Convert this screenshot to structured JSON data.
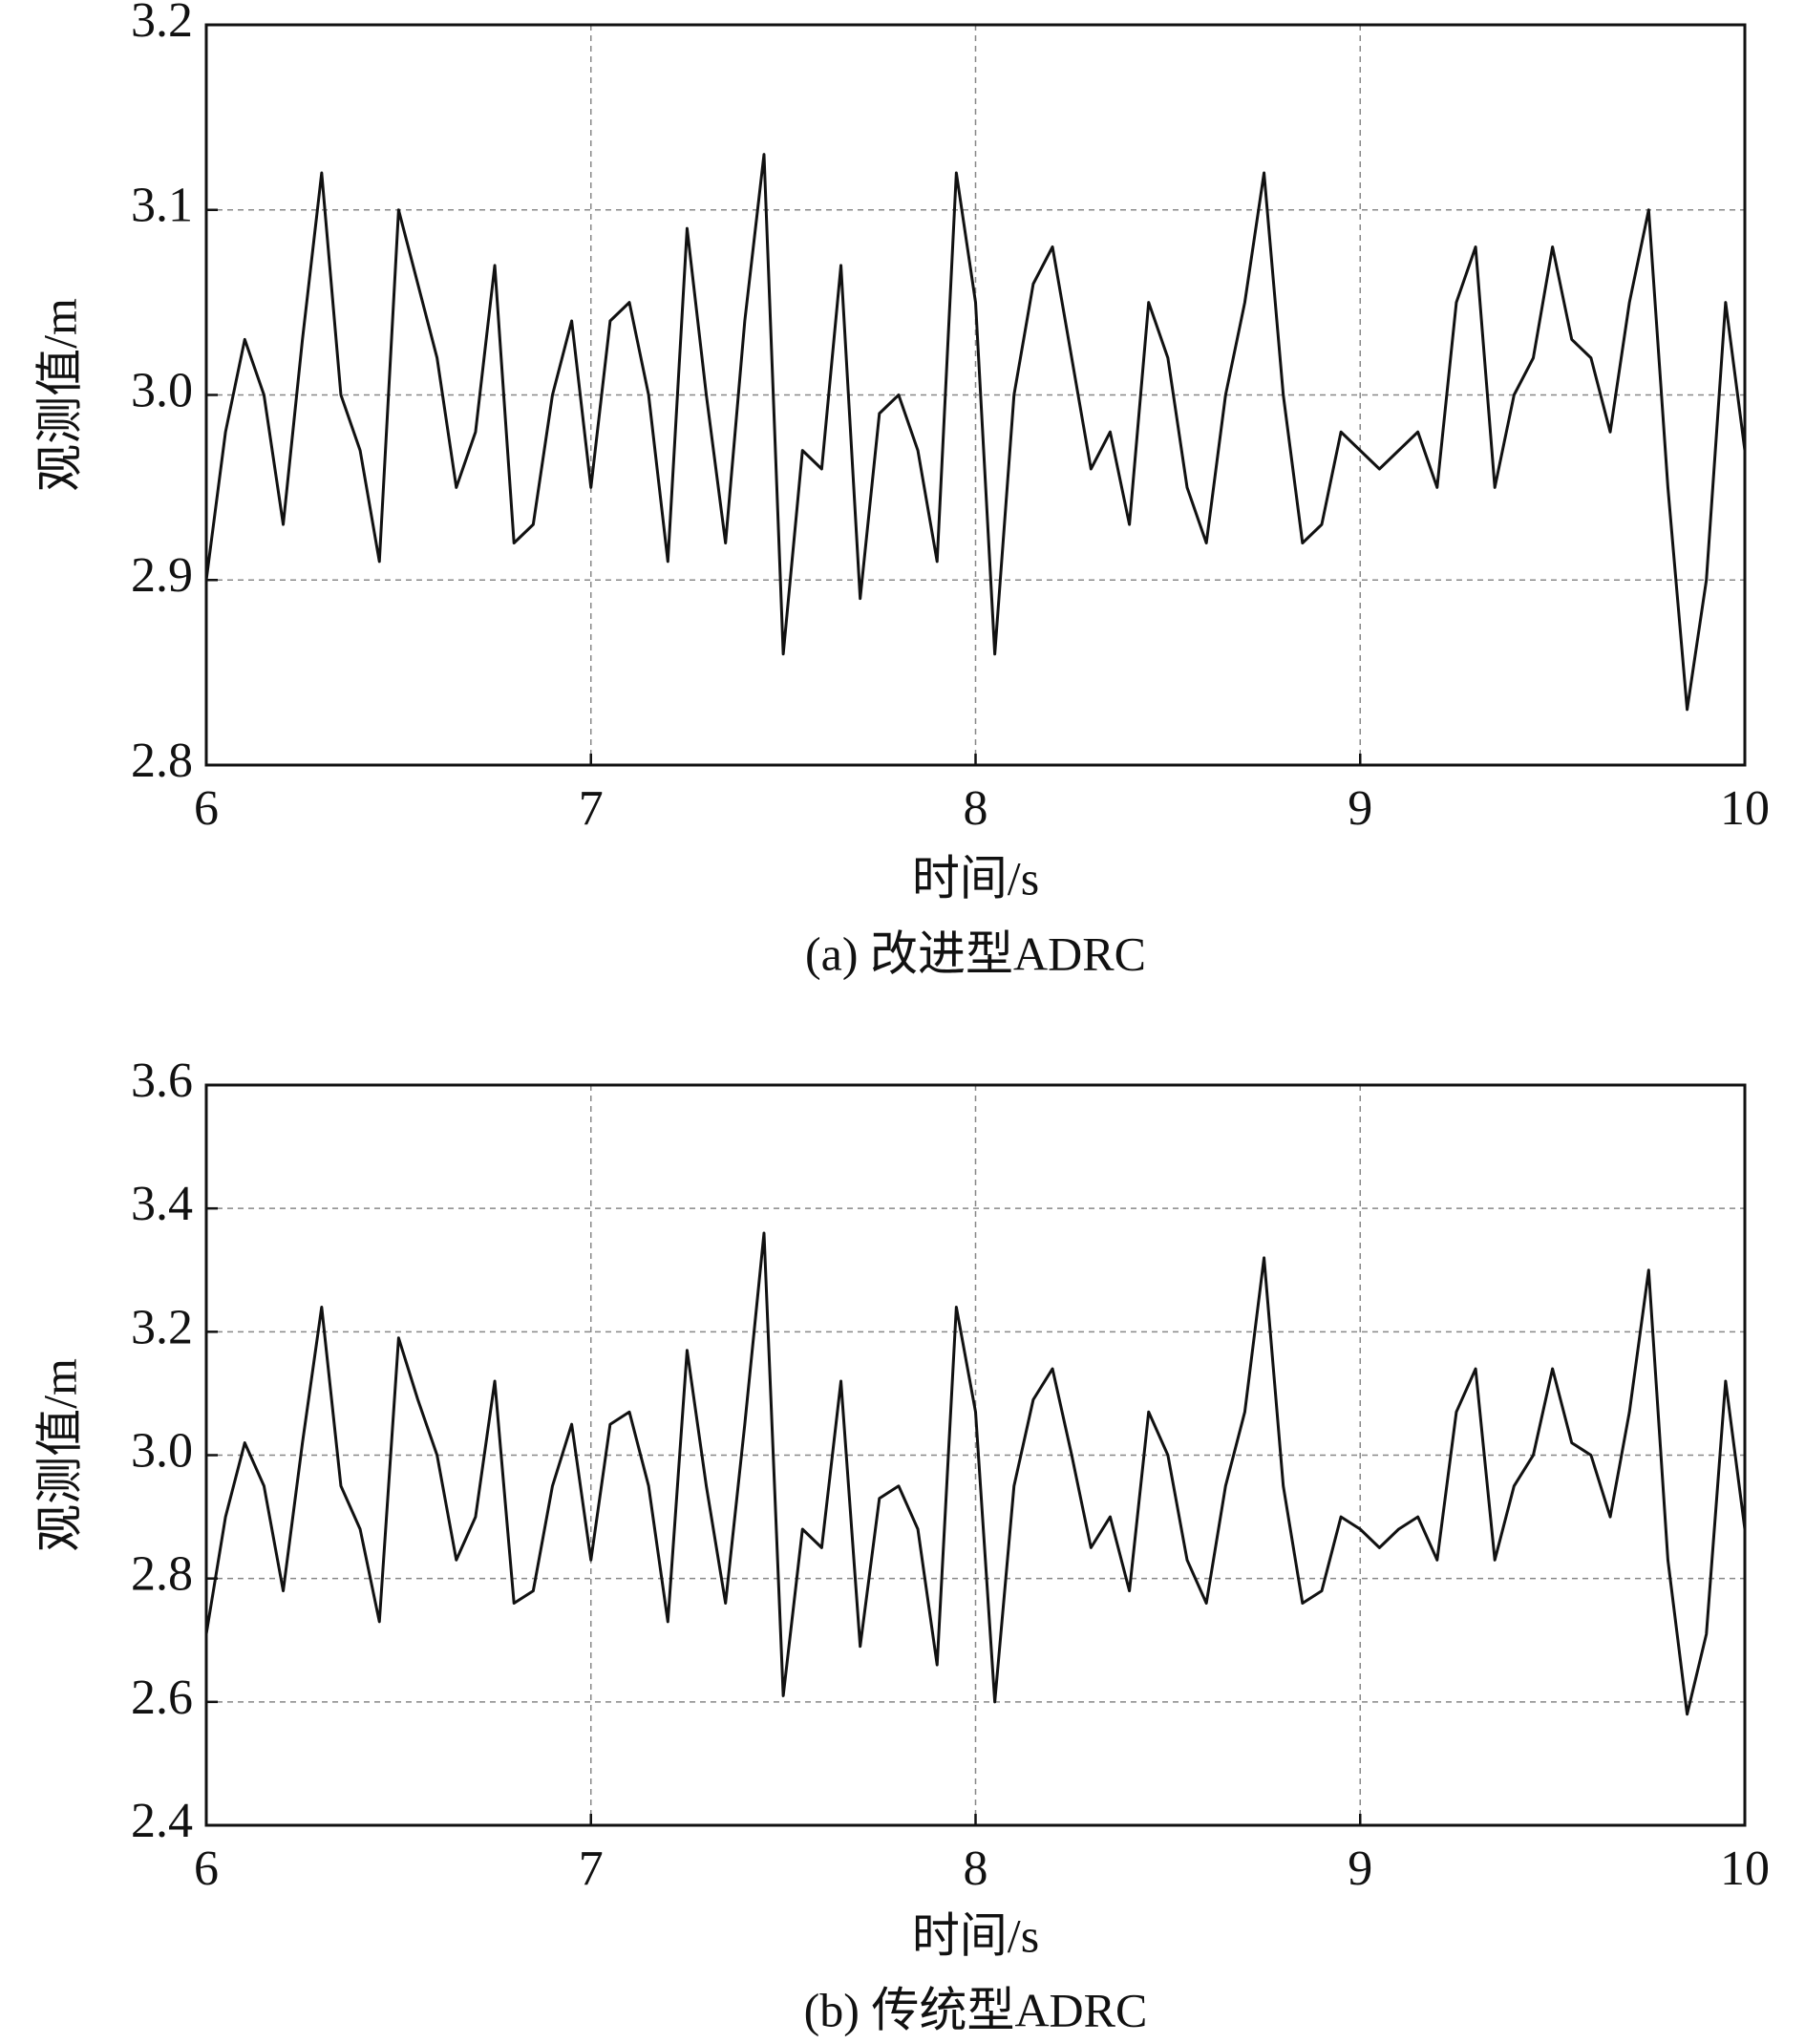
{
  "chart_data": [
    {
      "type": "line",
      "caption": "(a) 改进型ADRC",
      "xlabel": "时间/s",
      "ylabel": "观测值/m",
      "xlim": [
        6,
        10
      ],
      "xticks": [
        6,
        7,
        8,
        9,
        10
      ],
      "ylim": [
        2.8,
        3.2
      ],
      "yticks": [
        2.8,
        2.9,
        {
          "value": 3,
          "label": "3.0"
        },
        3.1,
        3.2
      ],
      "grid": true,
      "x": [
        6,
        6.05,
        6.1,
        6.15,
        6.2,
        6.25,
        6.3,
        6.35,
        6.4,
        6.45,
        6.5,
        6.55,
        6.6,
        6.65,
        6.7,
        6.75,
        6.8,
        6.85,
        6.9,
        6.95,
        7,
        7.05,
        7.1,
        7.15,
        7.2,
        7.25,
        7.3,
        7.35,
        7.4,
        7.45,
        7.5,
        7.55,
        7.6,
        7.65,
        7.7,
        7.75,
        7.8,
        7.85,
        7.9,
        7.95,
        8,
        8.05,
        8.1,
        8.15,
        8.2,
        8.25,
        8.3,
        8.35,
        8.4,
        8.45,
        8.5,
        8.55,
        8.6,
        8.65,
        8.7,
        8.75,
        8.8,
        8.85,
        8.9,
        8.95,
        9,
        9.05,
        9.1,
        9.15,
        9.2,
        9.25,
        9.3,
        9.35,
        9.4,
        9.45,
        9.5,
        9.55,
        9.6,
        9.65,
        9.7,
        9.75,
        9.8,
        9.85,
        9.9,
        9.95,
        10
      ],
      "series": [
        {
          "color": "#111111",
          "values": [
            2.9,
            2.98,
            3.03,
            3.0,
            2.93,
            3.03,
            3.12,
            3.0,
            2.97,
            2.91,
            3.1,
            3.06,
            3.02,
            2.95,
            2.98,
            3.07,
            2.92,
            2.93,
            3.0,
            3.04,
            2.95,
            3.04,
            3.05,
            3.0,
            2.91,
            3.09,
            3.0,
            2.92,
            3.04,
            3.13,
            2.86,
            2.97,
            2.96,
            3.07,
            2.89,
            2.99,
            3.0,
            2.97,
            2.91,
            3.12,
            3.05,
            2.86,
            3.0,
            3.06,
            3.08,
            3.02,
            2.96,
            2.98,
            2.93,
            3.05,
            3.02,
            2.95,
            2.92,
            3.0,
            3.05,
            3.12,
            3.0,
            2.92,
            2.93,
            2.98,
            2.97,
            2.96,
            2.97,
            2.98,
            2.95,
            3.05,
            3.08,
            2.95,
            3.0,
            3.02,
            3.08,
            3.03,
            3.02,
            2.98,
            3.05,
            3.1,
            2.95,
            2.83,
            2.9,
            3.05,
            2.97
          ]
        }
      ]
    },
    {
      "type": "line",
      "caption": "(b) 传统型ADRC",
      "xlabel": "时间/s",
      "ylabel": "观测值/m",
      "xlim": [
        6,
        10
      ],
      "xticks": [
        6,
        7,
        8,
        9,
        10
      ],
      "ylim": [
        2.4,
        3.6
      ],
      "yticks": [
        2.4,
        2.6,
        2.8,
        {
          "value": 3,
          "label": "3.0"
        },
        3.2,
        3.4,
        3.6
      ],
      "grid": true,
      "x": [
        6,
        6.05,
        6.1,
        6.15,
        6.2,
        6.25,
        6.3,
        6.35,
        6.4,
        6.45,
        6.5,
        6.55,
        6.6,
        6.65,
        6.7,
        6.75,
        6.8,
        6.85,
        6.9,
        6.95,
        7,
        7.05,
        7.1,
        7.15,
        7.2,
        7.25,
        7.3,
        7.35,
        7.4,
        7.45,
        7.5,
        7.55,
        7.6,
        7.65,
        7.7,
        7.75,
        7.8,
        7.85,
        7.9,
        7.95,
        8,
        8.05,
        8.1,
        8.15,
        8.2,
        8.25,
        8.3,
        8.35,
        8.4,
        8.45,
        8.5,
        8.55,
        8.6,
        8.65,
        8.7,
        8.75,
        8.8,
        8.85,
        8.9,
        8.95,
        9,
        9.05,
        9.1,
        9.15,
        9.2,
        9.25,
        9.3,
        9.35,
        9.4,
        9.45,
        9.5,
        9.55,
        9.6,
        9.65,
        9.7,
        9.75,
        9.8,
        9.85,
        9.9,
        9.95,
        10
      ],
      "series": [
        {
          "color": "#111111",
          "values": [
            2.71,
            2.9,
            3.02,
            2.95,
            2.78,
            3.02,
            3.24,
            2.95,
            2.88,
            2.73,
            3.19,
            3.09,
            3.0,
            2.83,
            2.9,
            3.12,
            2.76,
            2.78,
            2.95,
            3.05,
            2.83,
            3.05,
            3.07,
            2.95,
            2.73,
            3.17,
            2.95,
            2.76,
            3.05,
            3.36,
            2.61,
            2.88,
            2.85,
            3.12,
            2.69,
            2.93,
            2.95,
            2.88,
            2.66,
            3.24,
            3.07,
            2.6,
            2.95,
            3.09,
            3.14,
            3.0,
            2.85,
            2.9,
            2.78,
            3.07,
            3.0,
            2.83,
            2.76,
            2.95,
            3.07,
            3.32,
            2.95,
            2.76,
            2.78,
            2.9,
            2.88,
            2.85,
            2.88,
            2.9,
            2.83,
            3.07,
            3.14,
            2.83,
            2.95,
            3.0,
            3.14,
            3.02,
            3.0,
            2.9,
            3.07,
            3.3,
            2.83,
            2.58,
            2.71,
            3.12,
            2.88
          ]
        }
      ]
    }
  ]
}
